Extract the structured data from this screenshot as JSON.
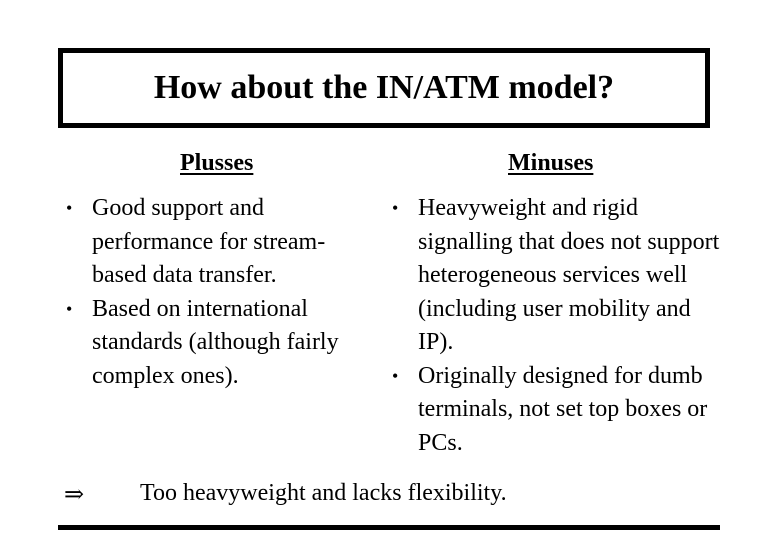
{
  "title": "How about the IN/ATM model?",
  "plusses": {
    "heading": "Plusses",
    "items": [
      "Good support and performance for stream-based data transfer.",
      "Based on international standards (although fairly complex ones)."
    ]
  },
  "minuses": {
    "heading": "Minuses",
    "items": [
      "Heavyweight and rigid signalling that does not support heterogeneous services well (including user mobility and IP).",
      "Originally designed for dumb terminals, not set top boxes or PCs."
    ]
  },
  "conclusion": {
    "symbol": "⇒",
    "text": "Too heavyweight and lacks flexibility."
  }
}
